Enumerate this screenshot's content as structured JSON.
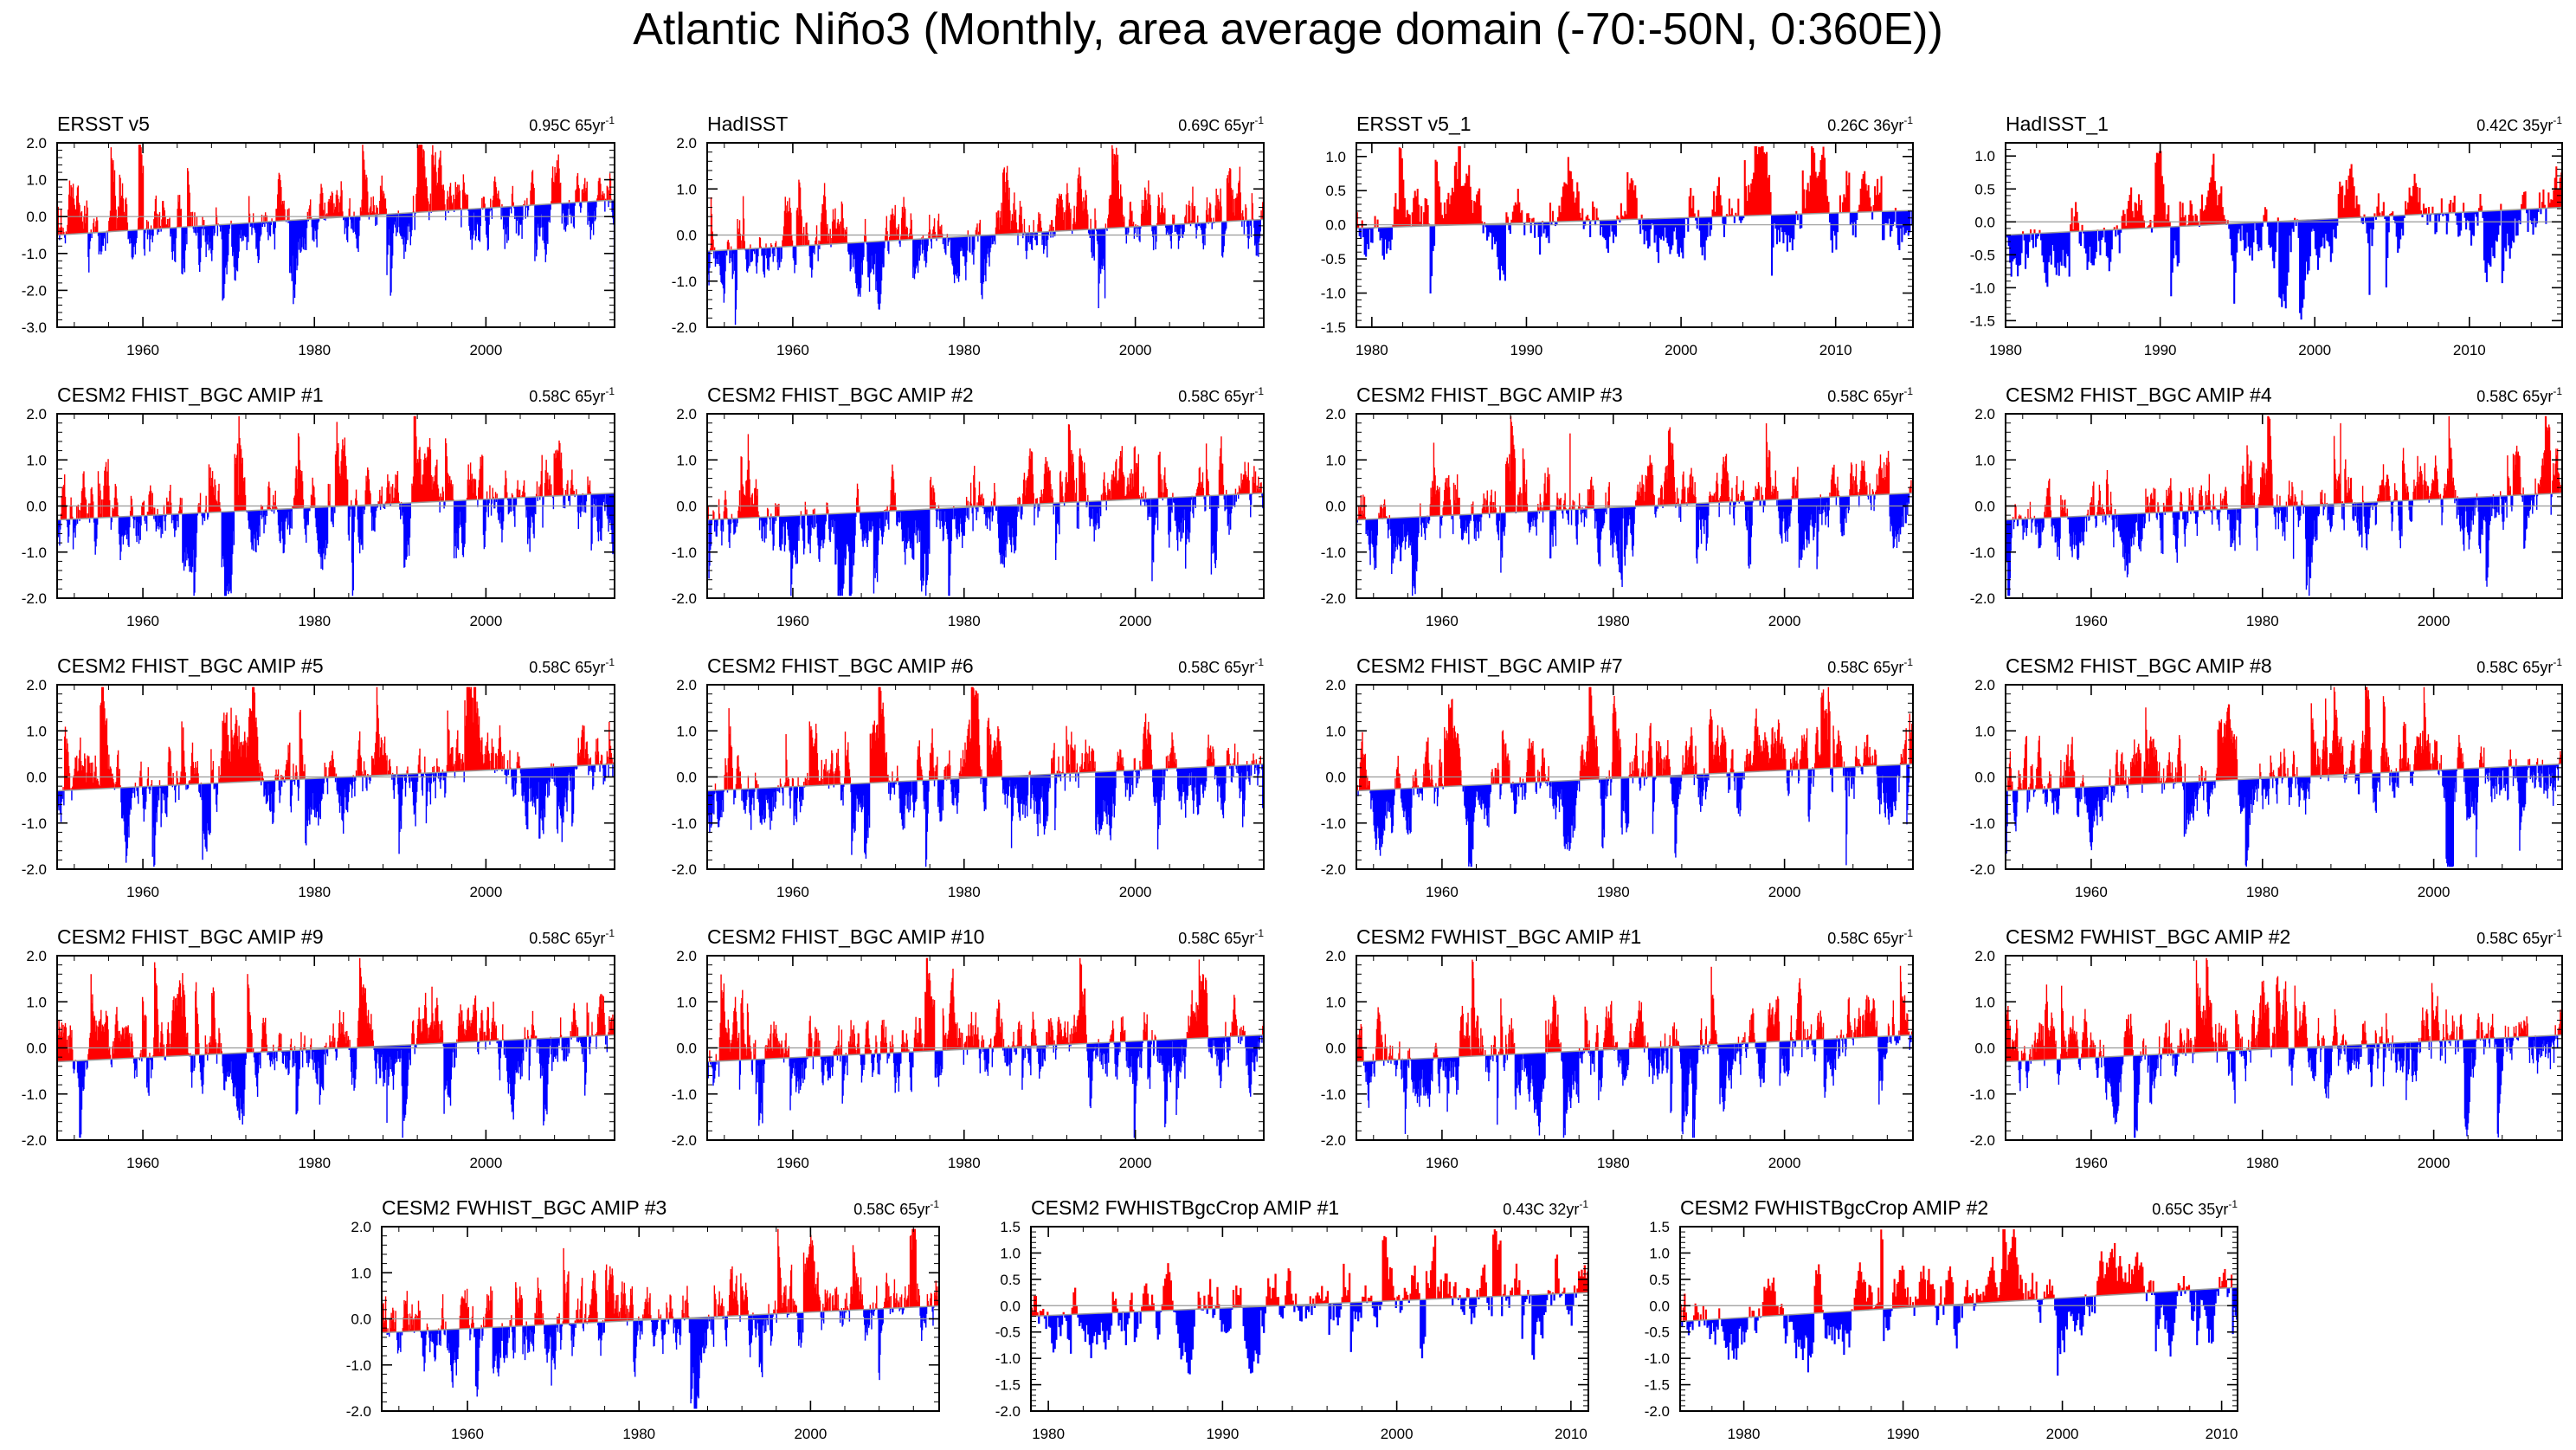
{
  "figure_title": "Atlantic Niño3 (Monthly, area average domain (-70:-50N, 0:360E))",
  "colors": {
    "positive": "#ff0000",
    "negative": "#0000ff",
    "zero_line": "#9a9a9a",
    "frame": "#000000"
  },
  "chart_data": [
    {
      "type": "area",
      "title": "ERSST v5",
      "trend": "0.95C 65yr",
      "trend_sup": "-1",
      "xlim": [
        1950,
        2015
      ],
      "ylim": [
        -3.0,
        2.0
      ],
      "xticks": [
        1960,
        1980,
        2000
      ],
      "xticklabels": [
        "1960",
        "1980",
        "2000"
      ],
      "yticks": [
        -3.0,
        -2.0,
        -1.0,
        0.0,
        1.0,
        2.0
      ],
      "yticklabels": [
        "-3.0",
        "-2.0",
        "-1.0",
        "0.0",
        "1.0",
        "2.0"
      ],
      "trend_line": [
        -0.5,
        0.45
      ],
      "seed": 11
    },
    {
      "type": "area",
      "title": "HadISST",
      "trend": "0.69C 65yr",
      "trend_sup": "-1",
      "xlim": [
        1950,
        2015
      ],
      "ylim": [
        -2.0,
        2.0
      ],
      "xticks": [
        1960,
        1980,
        2000
      ],
      "xticklabels": [
        "1960",
        "1980",
        "2000"
      ],
      "yticks": [
        -2.0,
        -1.0,
        0.0,
        1.0,
        2.0
      ],
      "yticklabels": [
        "-2.0",
        "-1.0",
        "0.0",
        "1.0",
        "2.0"
      ],
      "trend_line": [
        -0.35,
        0.34
      ],
      "seed": 22
    },
    {
      "type": "area",
      "title": "ERSST v5_1",
      "trend": "0.26C 36yr",
      "trend_sup": "-1",
      "xlim": [
        1979,
        2015
      ],
      "ylim": [
        -1.5,
        1.2
      ],
      "xticks": [
        1980,
        1990,
        2000,
        2010
      ],
      "xticklabels": [
        "1980",
        "1990",
        "2000",
        "2010"
      ],
      "yticks": [
        -1.5,
        -1.0,
        -0.5,
        0.0,
        0.5,
        1.0
      ],
      "yticklabels": [
        "-1.5",
        "-1.0",
        "-0.5",
        "0.0",
        "0.5",
        "1.0"
      ],
      "trend_line": [
        -0.05,
        0.21
      ],
      "seed": 33
    },
    {
      "type": "area",
      "title": "HadISST_1",
      "trend": "0.42C 35yr",
      "trend_sup": "-1",
      "xlim": [
        1980,
        2016
      ],
      "ylim": [
        -1.6,
        1.2
      ],
      "xticks": [
        1980,
        1990,
        2000,
        2010
      ],
      "xticklabels": [
        "1980",
        "1990",
        "2000",
        "2010"
      ],
      "yticks": [
        -1.5,
        -1.0,
        -0.5,
        0.0,
        0.5,
        1.0
      ],
      "yticklabels": [
        "-1.5",
        "-1.0",
        "-0.5",
        "0.0",
        "0.5",
        "1.0"
      ],
      "trend_line": [
        -0.2,
        0.22
      ],
      "seed": 44
    },
    {
      "type": "area",
      "title": "CESM2 FHIST_BGC AMIP #1",
      "trend": "0.58C 65yr",
      "trend_sup": "-1",
      "xlim": [
        1950,
        2015
      ],
      "ylim": [
        -2.0,
        2.0
      ],
      "xticks": [
        1960,
        1980,
        2000
      ],
      "xticklabels": [
        "1960",
        "1980",
        "2000"
      ],
      "yticks": [
        -2.0,
        -1.0,
        0.0,
        1.0,
        2.0
      ],
      "yticklabels": [
        "-2.0",
        "-1.0",
        "0.0",
        "1.0",
        "2.0"
      ],
      "trend_line": [
        -0.3,
        0.28
      ],
      "seed": 51
    },
    {
      "type": "area",
      "title": "CESM2 FHIST_BGC AMIP #2",
      "trend": "0.58C 65yr",
      "trend_sup": "-1",
      "xlim": [
        1950,
        2015
      ],
      "ylim": [
        -2.0,
        2.0
      ],
      "xticks": [
        1960,
        1980,
        2000
      ],
      "xticklabels": [
        "1960",
        "1980",
        "2000"
      ],
      "yticks": [
        -2.0,
        -1.0,
        0.0,
        1.0,
        2.0
      ],
      "yticklabels": [
        "-2.0",
        "-1.0",
        "0.0",
        "1.0",
        "2.0"
      ],
      "trend_line": [
        -0.3,
        0.28
      ],
      "seed": 52
    },
    {
      "type": "area",
      "title": "CESM2 FHIST_BGC AMIP #3",
      "trend": "0.58C 65yr",
      "trend_sup": "-1",
      "xlim": [
        1950,
        2015
      ],
      "ylim": [
        -2.0,
        2.0
      ],
      "xticks": [
        1960,
        1980,
        2000
      ],
      "xticklabels": [
        "1960",
        "1980",
        "2000"
      ],
      "yticks": [
        -2.0,
        -1.0,
        0.0,
        1.0,
        2.0
      ],
      "yticklabels": [
        "-2.0",
        "-1.0",
        "0.0",
        "1.0",
        "2.0"
      ],
      "trend_line": [
        -0.3,
        0.28
      ],
      "seed": 53
    },
    {
      "type": "area",
      "title": "CESM2 FHIST_BGC AMIP #4",
      "trend": "0.58C 65yr",
      "trend_sup": "-1",
      "xlim": [
        1950,
        2015
      ],
      "ylim": [
        -2.0,
        2.0
      ],
      "xticks": [
        1960,
        1980,
        2000
      ],
      "xticklabels": [
        "1960",
        "1980",
        "2000"
      ],
      "yticks": [
        -2.0,
        -1.0,
        0.0,
        1.0,
        2.0
      ],
      "yticklabels": [
        "-2.0",
        "-1.0",
        "0.0",
        "1.0",
        "2.0"
      ],
      "trend_line": [
        -0.3,
        0.28
      ],
      "seed": 54
    },
    {
      "type": "area",
      "title": "CESM2 FHIST_BGC AMIP #5",
      "trend": "0.58C 65yr",
      "trend_sup": "-1",
      "xlim": [
        1950,
        2015
      ],
      "ylim": [
        -2.0,
        2.0
      ],
      "xticks": [
        1960,
        1980,
        2000
      ],
      "xticklabels": [
        "1960",
        "1980",
        "2000"
      ],
      "yticks": [
        -2.0,
        -1.0,
        0.0,
        1.0,
        2.0
      ],
      "yticklabels": [
        "-2.0",
        "-1.0",
        "0.0",
        "1.0",
        "2.0"
      ],
      "trend_line": [
        -0.3,
        0.28
      ],
      "seed": 55
    },
    {
      "type": "area",
      "title": "CESM2 FHIST_BGC AMIP #6",
      "trend": "0.58C 65yr",
      "trend_sup": "-1",
      "xlim": [
        1950,
        2015
      ],
      "ylim": [
        -2.0,
        2.0
      ],
      "xticks": [
        1960,
        1980,
        2000
      ],
      "xticklabels": [
        "1960",
        "1980",
        "2000"
      ],
      "yticks": [
        -2.0,
        -1.0,
        0.0,
        1.0,
        2.0
      ],
      "yticklabels": [
        "-2.0",
        "-1.0",
        "0.0",
        "1.0",
        "2.0"
      ],
      "trend_line": [
        -0.3,
        0.28
      ],
      "seed": 56
    },
    {
      "type": "area",
      "title": "CESM2 FHIST_BGC AMIP #7",
      "trend": "0.58C 65yr",
      "trend_sup": "-1",
      "xlim": [
        1950,
        2015
      ],
      "ylim": [
        -2.0,
        2.0
      ],
      "xticks": [
        1960,
        1980,
        2000
      ],
      "xticklabels": [
        "1960",
        "1980",
        "2000"
      ],
      "yticks": [
        -2.0,
        -1.0,
        0.0,
        1.0,
        2.0
      ],
      "yticklabels": [
        "-2.0",
        "-1.0",
        "0.0",
        "1.0",
        "2.0"
      ],
      "trend_line": [
        -0.3,
        0.28
      ],
      "seed": 57
    },
    {
      "type": "area",
      "title": "CESM2 FHIST_BGC AMIP #8",
      "trend": "0.58C 65yr",
      "trend_sup": "-1",
      "xlim": [
        1950,
        2015
      ],
      "ylim": [
        -2.0,
        2.0
      ],
      "xticks": [
        1960,
        1980,
        2000
      ],
      "xticklabels": [
        "1960",
        "1980",
        "2000"
      ],
      "yticks": [
        -2.0,
        -1.0,
        0.0,
        1.0,
        2.0
      ],
      "yticklabels": [
        "-2.0",
        "-1.0",
        "0.0",
        "1.0",
        "2.0"
      ],
      "trend_line": [
        -0.3,
        0.28
      ],
      "seed": 58
    },
    {
      "type": "area",
      "title": "CESM2 FHIST_BGC AMIP #9",
      "trend": "0.58C 65yr",
      "trend_sup": "-1",
      "xlim": [
        1950,
        2015
      ],
      "ylim": [
        -2.0,
        2.0
      ],
      "xticks": [
        1960,
        1980,
        2000
      ],
      "xticklabels": [
        "1960",
        "1980",
        "2000"
      ],
      "yticks": [
        -2.0,
        -1.0,
        0.0,
        1.0,
        2.0
      ],
      "yticklabels": [
        "-2.0",
        "-1.0",
        "0.0",
        "1.0",
        "2.0"
      ],
      "trend_line": [
        -0.3,
        0.28
      ],
      "seed": 59
    },
    {
      "type": "area",
      "title": "CESM2 FHIST_BGC AMIP #10",
      "trend": "0.58C 65yr",
      "trend_sup": "-1",
      "xlim": [
        1950,
        2015
      ],
      "ylim": [
        -2.0,
        2.0
      ],
      "xticks": [
        1960,
        1980,
        2000
      ],
      "xticklabels": [
        "1960",
        "1980",
        "2000"
      ],
      "yticks": [
        -2.0,
        -1.0,
        0.0,
        1.0,
        2.0
      ],
      "yticklabels": [
        "-2.0",
        "-1.0",
        "0.0",
        "1.0",
        "2.0"
      ],
      "trend_line": [
        -0.3,
        0.28
      ],
      "seed": 60
    },
    {
      "type": "area",
      "title": "CESM2 FWHIST_BGC AMIP #1",
      "trend": "0.58C 65yr",
      "trend_sup": "-1",
      "xlim": [
        1950,
        2015
      ],
      "ylim": [
        -2.0,
        2.0
      ],
      "xticks": [
        1960,
        1980,
        2000
      ],
      "xticklabels": [
        "1960",
        "1980",
        "2000"
      ],
      "yticks": [
        -2.0,
        -1.0,
        0.0,
        1.0,
        2.0
      ],
      "yticklabels": [
        "-2.0",
        "-1.0",
        "0.0",
        "1.0",
        "2.0"
      ],
      "trend_line": [
        -0.3,
        0.28
      ],
      "seed": 61
    },
    {
      "type": "area",
      "title": "CESM2 FWHIST_BGC AMIP #2",
      "trend": "0.58C 65yr",
      "trend_sup": "-1",
      "xlim": [
        1950,
        2015
      ],
      "ylim": [
        -2.0,
        2.0
      ],
      "xticks": [
        1960,
        1980,
        2000
      ],
      "xticklabels": [
        "1960",
        "1980",
        "2000"
      ],
      "yticks": [
        -2.0,
        -1.0,
        0.0,
        1.0,
        2.0
      ],
      "yticklabels": [
        "-2.0",
        "-1.0",
        "0.0",
        "1.0",
        "2.0"
      ],
      "trend_line": [
        -0.3,
        0.28
      ],
      "seed": 62
    },
    {
      "type": "area",
      "title": "CESM2 FWHIST_BGC AMIP #3",
      "trend": "0.58C 65yr",
      "trend_sup": "-1",
      "xlim": [
        1950,
        2015
      ],
      "ylim": [
        -2.0,
        2.0
      ],
      "xticks": [
        1960,
        1980,
        2000
      ],
      "xticklabels": [
        "1960",
        "1980",
        "2000"
      ],
      "yticks": [
        -2.0,
        -1.0,
        0.0,
        1.0,
        2.0
      ],
      "yticklabels": [
        "-2.0",
        "-1.0",
        "0.0",
        "1.0",
        "2.0"
      ],
      "trend_line": [
        -0.3,
        0.28
      ],
      "seed": 63
    },
    {
      "type": "area",
      "title": "CESM2 FWHISTBgcCrop AMIP #1",
      "trend": "0.43C 32yr",
      "trend_sup": "-1",
      "xlim": [
        1979,
        2011
      ],
      "ylim": [
        -2.0,
        1.5
      ],
      "xticks": [
        1980,
        1990,
        2000,
        2010
      ],
      "xticklabels": [
        "1980",
        "1990",
        "2000",
        "2010"
      ],
      "yticks": [
        -2.0,
        -1.5,
        -1.0,
        -0.5,
        0.0,
        0.5,
        1.0,
        1.5
      ],
      "yticklabels": [
        "-2.0",
        "-1.5",
        "-1.0",
        "-0.5",
        "0.0",
        "0.5",
        "1.0",
        "1.5"
      ],
      "trend_line": [
        -0.2,
        0.25
      ],
      "seed": 71
    },
    {
      "type": "area",
      "title": "CESM2 FWHISTBgcCrop AMIP #2",
      "trend": "0.65C 35yr",
      "trend_sup": "-1",
      "xlim": [
        1976,
        2011
      ],
      "ylim": [
        -2.0,
        1.5
      ],
      "xticks": [
        1980,
        1990,
        2000,
        2010
      ],
      "xticklabels": [
        "1980",
        "1990",
        "2000",
        "2010"
      ],
      "yticks": [
        -2.0,
        -1.5,
        -1.0,
        -0.5,
        0.0,
        0.5,
        1.0,
        1.5
      ],
      "yticklabels": [
        "-2.0",
        "-1.5",
        "-1.0",
        "-0.5",
        "0.0",
        "0.5",
        "1.0",
        "1.5"
      ],
      "trend_line": [
        -0.3,
        0.35
      ],
      "seed": 72
    }
  ]
}
